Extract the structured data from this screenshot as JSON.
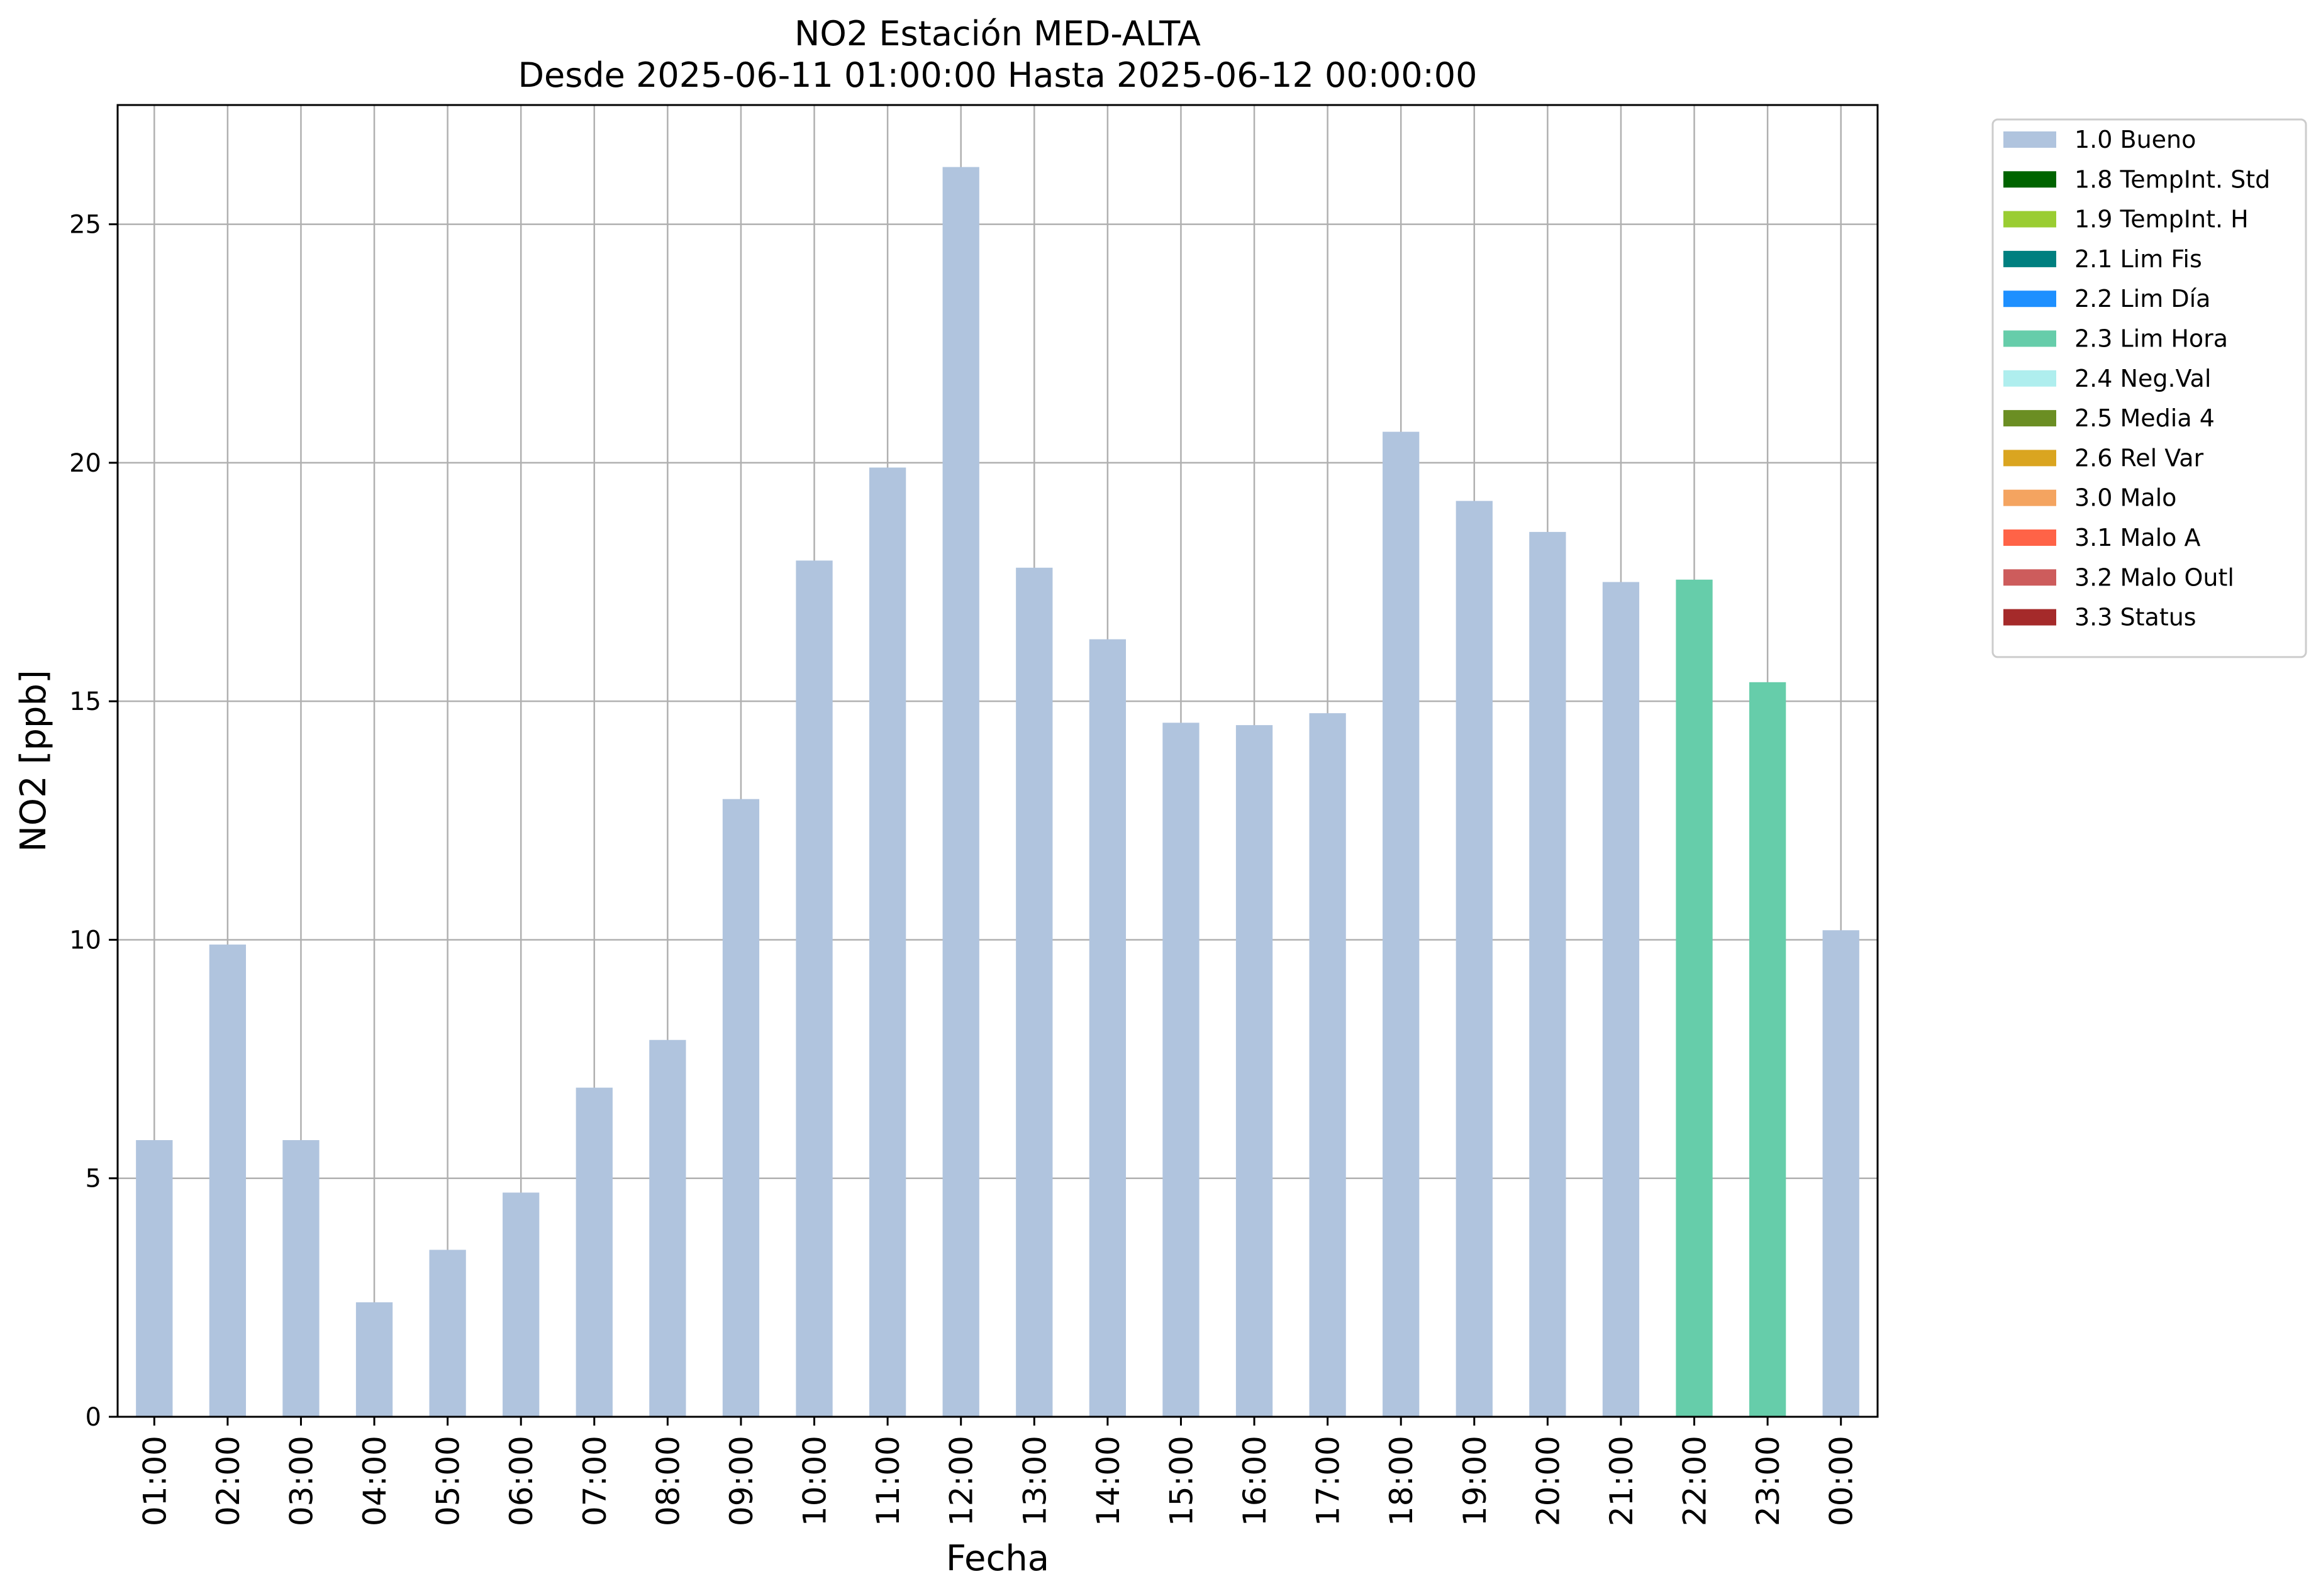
{
  "chart_data": {
    "type": "bar",
    "title": "NO2 Estación MED-ALTA",
    "subtitle": "Desde 2025-06-11 01:00:00 Hasta 2025-06-12 00:00:00",
    "xlabel": "Fecha",
    "ylabel": "NO2 [ppb]",
    "ylim": [
      0,
      27.5
    ],
    "yticks": [
      0,
      5,
      10,
      15,
      20,
      25
    ],
    "grid": true,
    "legend_position": "outside-top-right",
    "categories": [
      "01:00",
      "02:00",
      "03:00",
      "04:00",
      "05:00",
      "06:00",
      "07:00",
      "08:00",
      "09:00",
      "10:00",
      "11:00",
      "12:00",
      "13:00",
      "14:00",
      "15:00",
      "16:00",
      "17:00",
      "18:00",
      "19:00",
      "20:00",
      "21:00",
      "22:00",
      "23:00",
      "00:00"
    ],
    "values": [
      5.8,
      9.9,
      5.8,
      2.4,
      3.5,
      4.7,
      6.9,
      7.9,
      12.95,
      17.95,
      19.9,
      26.2,
      17.8,
      16.3,
      14.55,
      14.5,
      14.75,
      20.65,
      19.2,
      18.55,
      17.5,
      17.55,
      15.4,
      10.2
    ],
    "flags": [
      "1.0 Bueno",
      "1.0 Bueno",
      "1.0 Bueno",
      "1.0 Bueno",
      "1.0 Bueno",
      "1.0 Bueno",
      "1.0 Bueno",
      "1.0 Bueno",
      "1.0 Bueno",
      "1.0 Bueno",
      "1.0 Bueno",
      "1.0 Bueno",
      "1.0 Bueno",
      "1.0 Bueno",
      "1.0 Bueno",
      "1.0 Bueno",
      "1.0 Bueno",
      "1.0 Bueno",
      "1.0 Bueno",
      "1.0 Bueno",
      "1.0 Bueno",
      "2.3 Lim Hora",
      "2.3 Lim Hora",
      "1.0 Bueno"
    ],
    "legend": [
      {
        "label": "1.0 Bueno",
        "color": "#b0c4de"
      },
      {
        "label": "1.8 TempInt. Std",
        "color": "#006400"
      },
      {
        "label": "1.9 TempInt. H",
        "color": "#9acd32"
      },
      {
        "label": "2.1 Lim Fis",
        "color": "#008080"
      },
      {
        "label": "2.2 Lim Día",
        "color": "#1e90ff"
      },
      {
        "label": "2.3 Lim Hora",
        "color": "#66cdaa"
      },
      {
        "label": "2.4 Neg.Val",
        "color": "#afeeee"
      },
      {
        "label": "2.5 Media 4",
        "color": "#6b8e23"
      },
      {
        "label": "2.6 Rel Var",
        "color": "#daa520"
      },
      {
        "label": "3.0 Malo",
        "color": "#f4a460"
      },
      {
        "label": "3.1 Malo A",
        "color": "#ff6347"
      },
      {
        "label": "3.2 Malo Outl",
        "color": "#cd5c5c"
      },
      {
        "label": "3.3 Status",
        "color": "#a52a2a"
      }
    ]
  }
}
